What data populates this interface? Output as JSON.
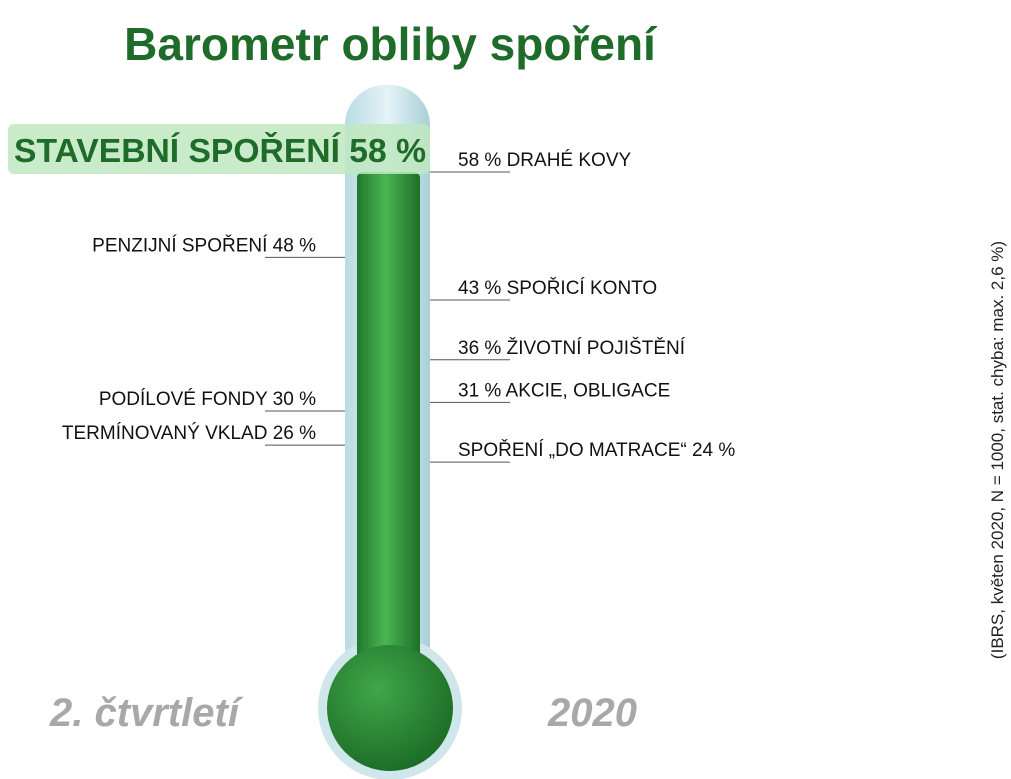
{
  "chart_data": {
    "type": "thermometer",
    "title": "Barometr obliby spoření",
    "values": [
      58,
      58,
      48,
      43,
      36,
      31,
      30,
      26,
      24
    ],
    "value_labels": [
      "STAVEBNÍ SPOŘENÍ 58 %",
      "58 % DRAHÉ KOVY",
      "PENZIJNÍ SPOŘENÍ 48 %",
      "43 % SPOŘICÍ KONTO",
      "36 % ŽIVOTNÍ POJIŠTĚNÍ",
      "31 % AKCIE, OBLIGACE",
      "PODÍLOVÉ FONDY 30 %",
      "TERMÍNOVANÝ VKLAD 26 %",
      "SPOŘENÍ „DO MATRACE“ 24 %"
    ],
    "ylim": [
      0,
      58
    ],
    "color": "#2e8b3a",
    "period": "2. čtvrtletí",
    "year": "2020",
    "note": "(IBRS, květen 2020, N = 1000, stat. chyba: max. 2,6 %)"
  }
}
